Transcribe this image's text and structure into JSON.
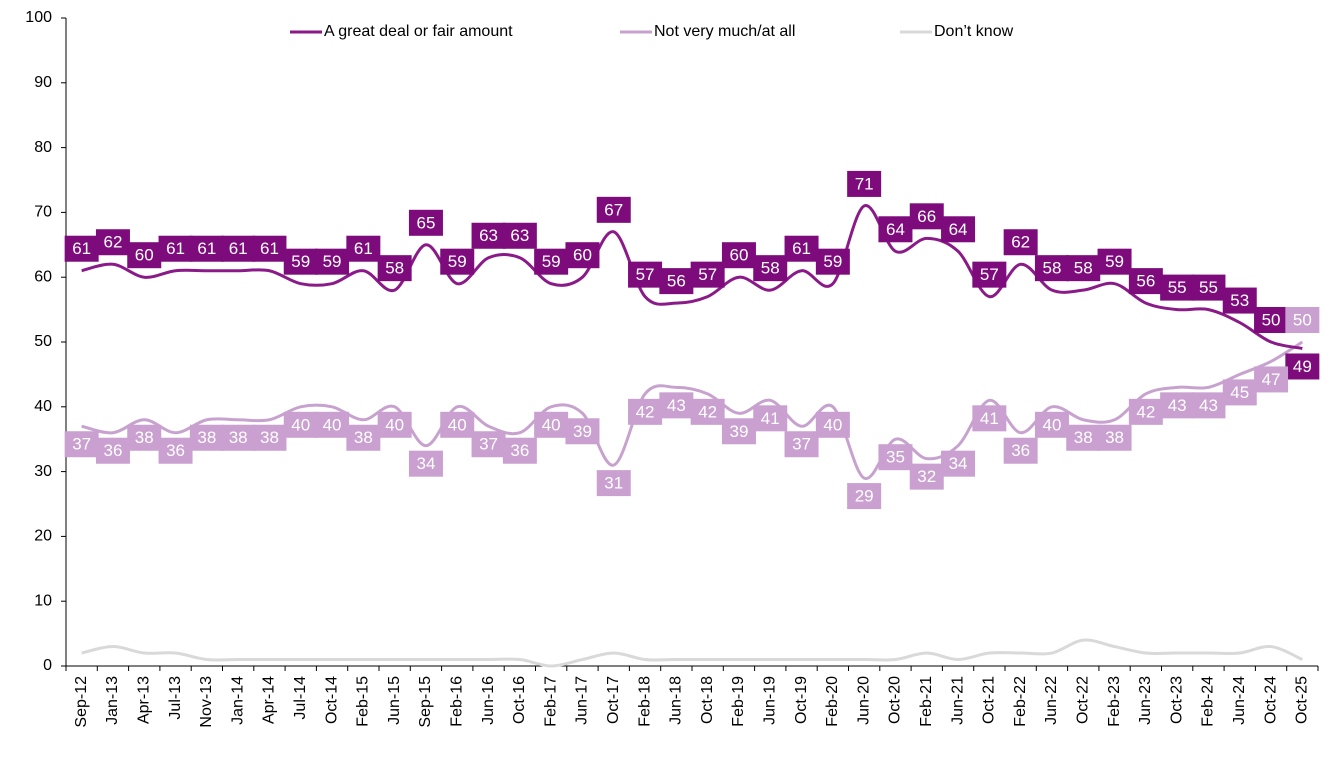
{
  "chart_data": {
    "type": "line",
    "categories": [
      "Sep-12",
      "Jan-13",
      "Apr-13",
      "Jul-13",
      "Nov-13",
      "Jan-14",
      "Apr-14",
      "Jul-14",
      "Oct-14",
      "Feb-15",
      "Jun-15",
      "Sep-15",
      "Feb-16",
      "Jun-16",
      "Oct-16",
      "Feb-17",
      "Jun-17",
      "Oct-17",
      "Feb-18",
      "Jun-18",
      "Oct-18",
      "Feb-19",
      "Jun-19",
      "Oct-19",
      "Feb-20",
      "Jun-20",
      "Oct-20",
      "Feb-21",
      "Jun-21",
      "Oct-21",
      "Feb-22",
      "Jun-22",
      "Oct-22",
      "Feb-23",
      "Jun-23",
      "Oct-23",
      "Feb-24",
      "Jun-24",
      "Oct-24",
      "Oct-25"
    ],
    "series": [
      {
        "name": "A great deal or fair amount",
        "color": "#8b1a89",
        "label_color": "#7d0b7c",
        "data_labels": true,
        "values": [
          61,
          62,
          60,
          61,
          61,
          61,
          61,
          59,
          59,
          61,
          58,
          65,
          59,
          63,
          63,
          59,
          60,
          67,
          57,
          56,
          57,
          60,
          58,
          61,
          59,
          71,
          64,
          66,
          64,
          57,
          62,
          58,
          58,
          59,
          56,
          55,
          55,
          53,
          50,
          49
        ]
      },
      {
        "name": "Not very much/at all",
        "color": "#c8a2cf",
        "label_color": "#c9a0d0",
        "data_labels": true,
        "values": [
          37,
          36,
          38,
          36,
          38,
          38,
          38,
          40,
          40,
          38,
          40,
          34,
          40,
          37,
          36,
          40,
          39,
          31,
          42,
          43,
          42,
          39,
          41,
          37,
          40,
          29,
          35,
          32,
          34,
          41,
          36,
          40,
          38,
          38,
          42,
          43,
          43,
          45,
          47,
          50
        ]
      },
      {
        "name": "Don’t know",
        "color": "#d9d9d9",
        "data_labels": false,
        "values": [
          2,
          3,
          2,
          2,
          1,
          1,
          1,
          1,
          1,
          1,
          1,
          1,
          1,
          1,
          1,
          0,
          1,
          2,
          1,
          1,
          1,
          1,
          1,
          1,
          1,
          1,
          1,
          2,
          1,
          2,
          2,
          2,
          4,
          3,
          2,
          2,
          2,
          2,
          3,
          1
        ]
      }
    ],
    "ylim": [
      0,
      100
    ],
    "yticks": [
      0,
      10,
      20,
      30,
      40,
      50,
      60,
      70,
      80,
      90,
      100
    ],
    "grid": false,
    "legend": "top"
  }
}
